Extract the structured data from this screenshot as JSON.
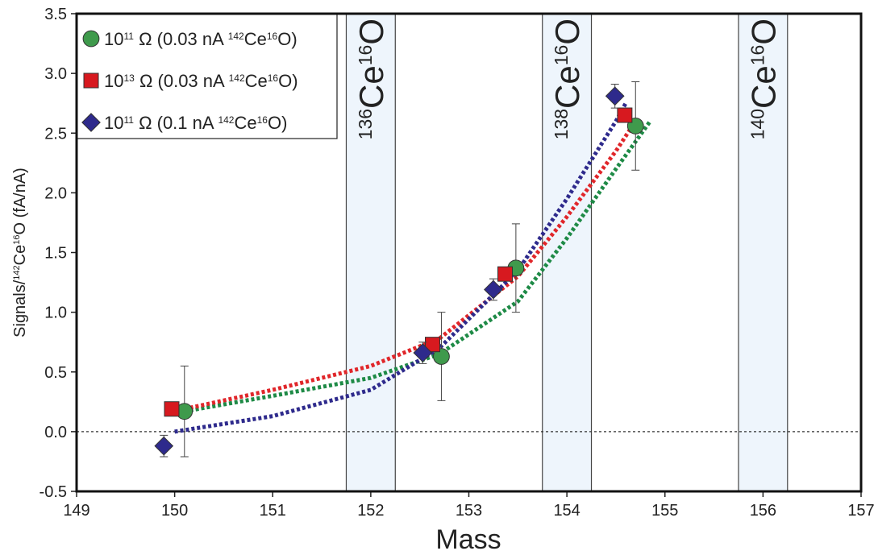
{
  "chart_data": {
    "type": "scatter",
    "xlabel": "Mass",
    "ylabel": [
      {
        "t": "Signals/"
      },
      {
        "t": "142",
        "sup": true
      },
      {
        "t": "Ce"
      },
      {
        "t": "16",
        "sup": true
      },
      {
        "t": "O (fA/nA)"
      }
    ],
    "xlim": [
      149,
      157
    ],
    "ylim": [
      -0.5,
      3.5
    ],
    "xticks": [
      149,
      150,
      151,
      152,
      153,
      154,
      155,
      156,
      157
    ],
    "yticks": [
      -0.5,
      {
        "value": 0,
        "label": "0.0"
      },
      0.5,
      {
        "value": 1,
        "label": "1.0"
      },
      1.5,
      {
        "value": 2,
        "label": "2.0"
      },
      2.5,
      {
        "value": 3,
        "label": "3.0"
      },
      3.5
    ],
    "hline": 0,
    "legend": "upper left",
    "bands": [
      {
        "x0": 151.75,
        "x1": 152.25,
        "label": [
          {
            "t": "136",
            "sup": true
          },
          {
            "t": "Ce"
          },
          {
            "t": "16",
            "sup": true
          },
          {
            "t": "O"
          }
        ]
      },
      {
        "x0": 153.75,
        "x1": 154.25,
        "label": [
          {
            "t": "138",
            "sup": true
          },
          {
            "t": "Ce"
          },
          {
            "t": "16",
            "sup": true
          },
          {
            "t": "O"
          }
        ]
      },
      {
        "x0": 155.75,
        "x1": 156.25,
        "label": [
          {
            "t": "140",
            "sup": true
          },
          {
            "t": "Ce"
          },
          {
            "t": "16",
            "sup": true
          },
          {
            "t": "O"
          }
        ]
      }
    ],
    "series": [
      {
        "name": [
          {
            "t": "10"
          },
          {
            "t": "11",
            "sup": true
          },
          {
            "t": " Ω (0.03 nA "
          },
          {
            "t": "142",
            "sup": true
          },
          {
            "t": "Ce"
          },
          {
            "t": "16",
            "sup": true
          },
          {
            "t": "O)"
          }
        ],
        "color": "#3f9a4c",
        "line_color": "#1e8a46",
        "marker": "circle",
        "x": [
          150.1,
          152.72,
          153.48,
          154.7
        ],
        "values": [
          0.17,
          0.63,
          1.37,
          2.56
        ],
        "errors": [
          0.38,
          0.37,
          0.37,
          0.37
        ],
        "trend": {
          "x": [
            150.1,
            151,
            152,
            152.7,
            153.5,
            154,
            154.5,
            154.85
          ],
          "y": [
            0.17,
            0.3,
            0.45,
            0.65,
            1.09,
            1.62,
            2.2,
            2.6
          ]
        }
      },
      {
        "name": [
          {
            "t": "10"
          },
          {
            "t": "13",
            "sup": true
          },
          {
            "t": " Ω (0.03 nA "
          },
          {
            "t": "142",
            "sup": true
          },
          {
            "t": "Ce"
          },
          {
            "t": "16",
            "sup": true
          },
          {
            "t": "O)"
          }
        ],
        "color": "#d7191f",
        "line_color": "#e0262a",
        "marker": "square",
        "x": [
          149.97,
          152.63,
          153.37,
          154.59
        ],
        "values": [
          0.19,
          0.73,
          1.32,
          2.65
        ],
        "trend": {
          "x": [
            150.1,
            151,
            152,
            152.7,
            153.5,
            154,
            154.5,
            154.7
          ],
          "y": [
            0.19,
            0.35,
            0.55,
            0.78,
            1.3,
            1.8,
            2.35,
            2.6
          ]
        }
      },
      {
        "name": [
          {
            "t": "10"
          },
          {
            "t": "11",
            "sup": true
          },
          {
            "t": " Ω (0.1 nA "
          },
          {
            "t": "142",
            "sup": true
          },
          {
            "t": "Ce"
          },
          {
            "t": "16",
            "sup": true
          },
          {
            "t": "O)"
          }
        ],
        "color": "#2e2a8c",
        "line_color": "#2e2a8c",
        "marker": "diamond",
        "x": [
          149.89,
          152.53,
          153.25,
          154.49
        ],
        "values": [
          -0.12,
          0.66,
          1.19,
          2.81
        ],
        "errors": [
          0.09,
          0.09,
          0.09,
          0.1
        ],
        "trend": {
          "x": [
            150.0,
            151,
            152,
            152.7,
            153.5,
            154,
            154.5,
            154.6
          ],
          "y": [
            0.0,
            0.13,
            0.35,
            0.7,
            1.35,
            1.95,
            2.6,
            2.75
          ]
        }
      }
    ]
  }
}
